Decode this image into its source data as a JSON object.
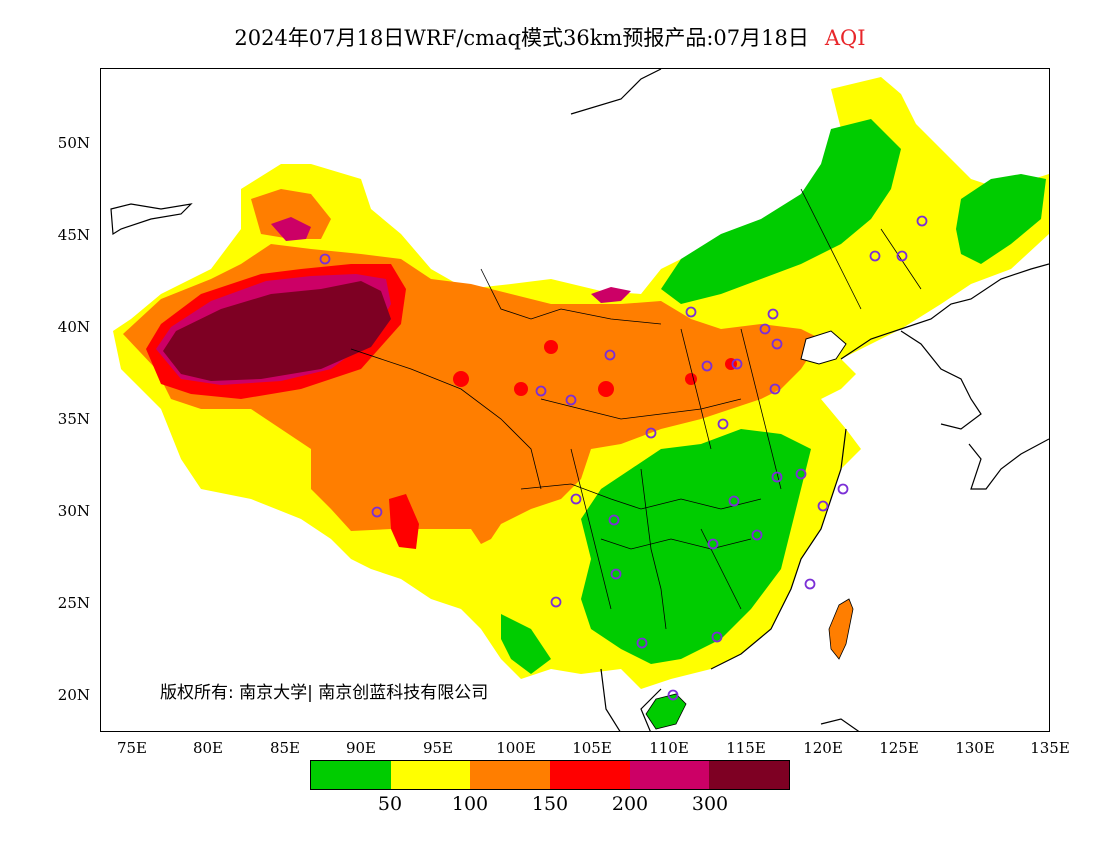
{
  "title": {
    "main": "2024年07月18日WRF/cmaq模式36km预报产品:07月18日",
    "product": "AQI",
    "product_color": "#e8262a"
  },
  "map": {
    "lat_ticks": [
      "50N",
      "45N",
      "40N",
      "35N",
      "30N",
      "25N",
      "20N"
    ],
    "lon_ticks": [
      "75E",
      "80E",
      "85E",
      "90E",
      "95E",
      "100E",
      "105E",
      "110E",
      "115E",
      "120E",
      "125E",
      "130E",
      "135E"
    ],
    "copyright": "版权所有: 南京大学| 南京创蓝科技有限公司",
    "station_marker_color": "#7b2fd6"
  },
  "legend": {
    "colors": [
      "#00cc00",
      "#ffff00",
      "#ff7e00",
      "#ff0000",
      "#cc0066",
      "#7e0023"
    ],
    "labels": [
      "50",
      "100",
      "150",
      "200",
      "300"
    ]
  }
}
